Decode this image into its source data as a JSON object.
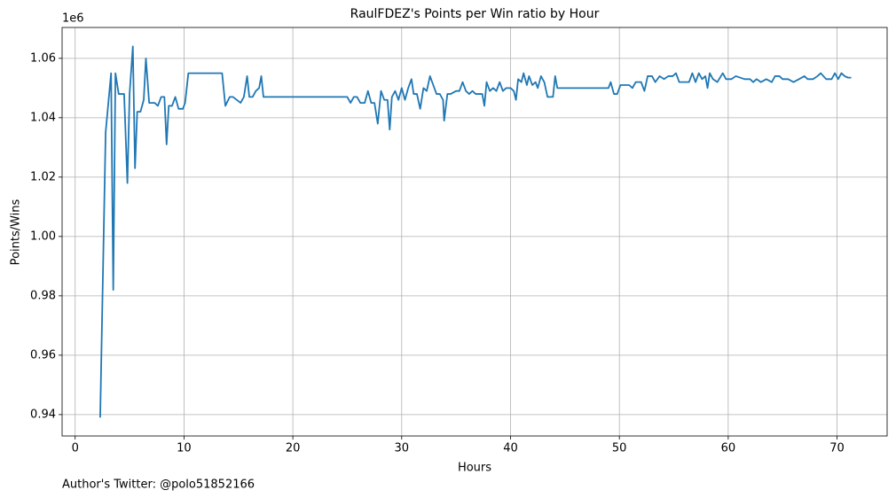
{
  "chart_data": {
    "type": "line",
    "title": "RaulFDEZ's Points per Win ratio by Hour",
    "xlabel": "Hours",
    "ylabel": "Points/Wins",
    "y_offset_text": "1e6",
    "footer": "Author's Twitter: @polo51852166",
    "x": [
      2.3,
      2.8,
      3.3,
      3.5,
      3.7,
      4.0,
      4.5,
      4.8,
      5.0,
      5.3,
      5.5,
      5.7,
      6.0,
      6.3,
      6.5,
      6.8,
      7.0,
      7.3,
      7.6,
      7.9,
      8.2,
      8.4,
      8.6,
      8.9,
      9.2,
      9.5,
      9.9,
      10.1,
      10.4,
      13.5,
      13.8,
      14.2,
      14.5,
      15.2,
      15.5,
      15.8,
      16.0,
      16.3,
      16.6,
      16.9,
      17.1,
      17.3,
      25.0,
      25.3,
      25.6,
      25.9,
      26.2,
      26.6,
      26.9,
      27.2,
      27.5,
      27.8,
      28.1,
      28.4,
      28.7,
      28.9,
      29.1,
      29.4,
      29.7,
      30.0,
      30.3,
      30.6,
      30.9,
      31.1,
      31.4,
      31.7,
      32.0,
      32.3,
      32.6,
      32.9,
      33.2,
      33.5,
      33.8,
      33.9,
      34.2,
      34.5,
      35.0,
      35.3,
      35.6,
      35.9,
      36.2,
      36.5,
      36.8,
      37.4,
      37.6,
      37.8,
      38.1,
      38.4,
      38.7,
      39.0,
      39.3,
      39.6,
      40.0,
      40.3,
      40.5,
      40.7,
      41.0,
      41.2,
      41.5,
      41.7,
      42.0,
      42.3,
      42.5,
      42.8,
      43.1,
      43.4,
      43.9,
      44.1,
      44.3,
      49.0,
      49.2,
      49.5,
      49.8,
      50.1,
      50.6,
      50.9,
      51.2,
      51.5,
      52.0,
      52.3,
      52.6,
      53.0,
      53.3,
      53.7,
      54.1,
      54.5,
      54.9,
      55.2,
      55.5,
      56.4,
      56.7,
      57.0,
      57.3,
      57.6,
      57.9,
      58.1,
      58.3,
      58.6,
      59.0,
      59.5,
      59.8,
      60.3,
      60.7,
      61.5,
      62.0,
      62.3,
      62.6,
      63.0,
      63.5,
      64.0,
      64.3,
      64.7,
      65.0,
      65.5,
      66.0,
      66.5,
      67.0,
      67.3,
      67.8,
      68.2,
      68.5,
      69.0,
      69.5,
      69.8,
      70.1,
      70.4,
      70.7,
      71.0,
      71.3
    ],
    "values": [
      0.939,
      1.035,
      1.055,
      0.982,
      1.055,
      1.048,
      1.048,
      1.018,
      1.048,
      1.064,
      1.023,
      1.042,
      1.042,
      1.046,
      1.06,
      1.045,
      1.045,
      1.045,
      1.044,
      1.047,
      1.047,
      1.031,
      1.044,
      1.044,
      1.047,
      1.043,
      1.043,
      1.045,
      1.055,
      1.055,
      1.044,
      1.047,
      1.047,
      1.045,
      1.047,
      1.054,
      1.047,
      1.047,
      1.049,
      1.05,
      1.054,
      1.047,
      1.047,
      1.045,
      1.047,
      1.047,
      1.045,
      1.045,
      1.049,
      1.045,
      1.045,
      1.038,
      1.049,
      1.046,
      1.046,
      1.036,
      1.047,
      1.049,
      1.046,
      1.05,
      1.046,
      1.05,
      1.053,
      1.048,
      1.048,
      1.043,
      1.05,
      1.049,
      1.054,
      1.051,
      1.048,
      1.048,
      1.046,
      1.039,
      1.048,
      1.048,
      1.049,
      1.049,
      1.052,
      1.049,
      1.048,
      1.049,
      1.048,
      1.048,
      1.044,
      1.052,
      1.049,
      1.05,
      1.049,
      1.052,
      1.049,
      1.05,
      1.05,
      1.049,
      1.046,
      1.053,
      1.052,
      1.055,
      1.051,
      1.054,
      1.051,
      1.052,
      1.05,
      1.054,
      1.052,
      1.047,
      1.047,
      1.054,
      1.05,
      1.05,
      1.052,
      1.048,
      1.048,
      1.051,
      1.051,
      1.051,
      1.05,
      1.052,
      1.052,
      1.049,
      1.054,
      1.054,
      1.052,
      1.054,
      1.053,
      1.054,
      1.054,
      1.055,
      1.052,
      1.052,
      1.055,
      1.052,
      1.055,
      1.053,
      1.054,
      1.05,
      1.055,
      1.053,
      1.052,
      1.055,
      1.053,
      1.053,
      1.054,
      1.053,
      1.053,
      1.052,
      1.053,
      1.052,
      1.053,
      1.052,
      1.054,
      1.054,
      1.053,
      1.053,
      1.052,
      1.053,
      1.054,
      1.053,
      1.053,
      1.054,
      1.055,
      1.053,
      1.053,
      1.055,
      1.053,
      1.055,
      1.054,
      1.0535,
      1.0535
    ],
    "color": "#1f77b4",
    "xlim": [
      -1.2,
      74.6
    ],
    "ylim": [
      0.9328,
      1.0704
    ],
    "xticks": [
      0,
      10,
      20,
      30,
      40,
      50,
      60,
      70
    ],
    "yticks": [
      0.94,
      0.96,
      0.98,
      {
        "value": 1,
        "label": "1.00"
      },
      1.02,
      1.04,
      1.06
    ],
    "grid": true
  }
}
